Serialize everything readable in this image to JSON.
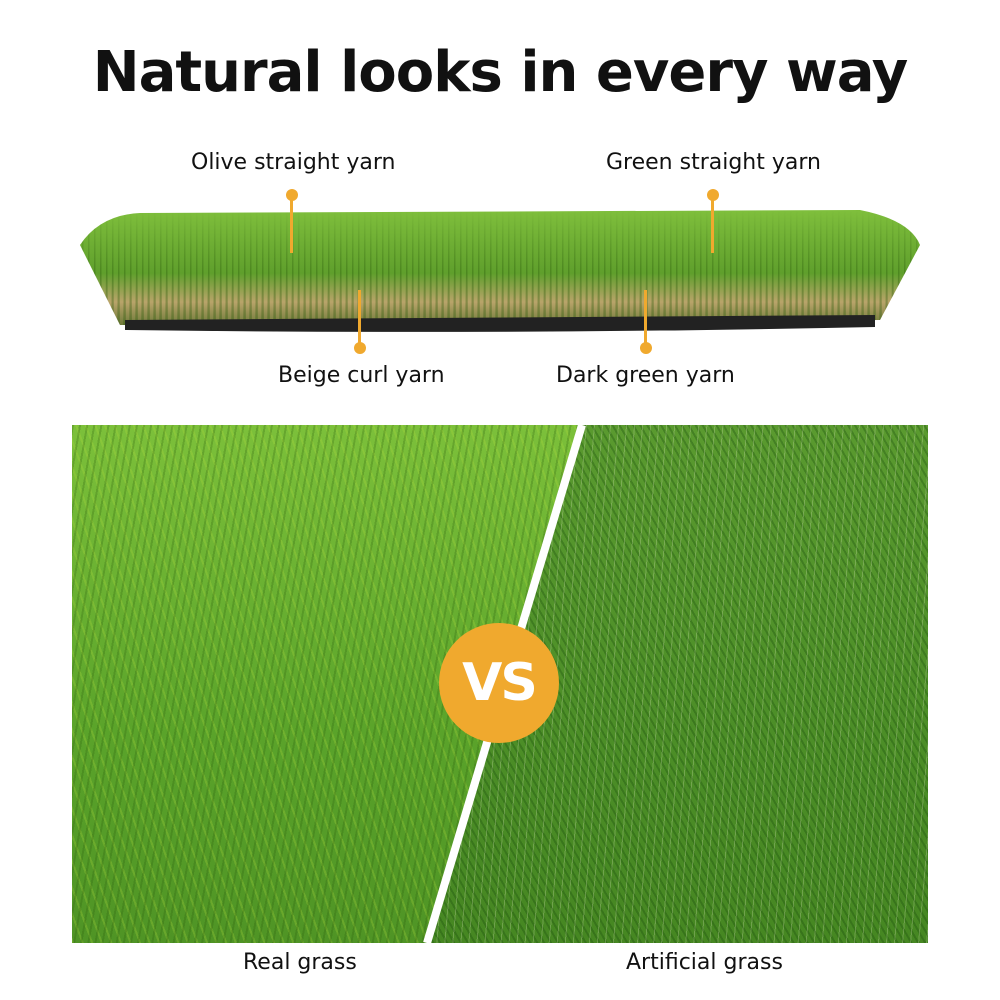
{
  "title": "Natural looks in every way",
  "callouts": {
    "olive": "Olive straight yarn",
    "green": "Green straight yarn",
    "beige": "Beige curl yarn",
    "dark": "Dark green yarn"
  },
  "comparison": {
    "vs": "VS",
    "left": "Real grass",
    "right": "Artificial grass"
  },
  "colors": {
    "accent": "#f0a92e"
  }
}
